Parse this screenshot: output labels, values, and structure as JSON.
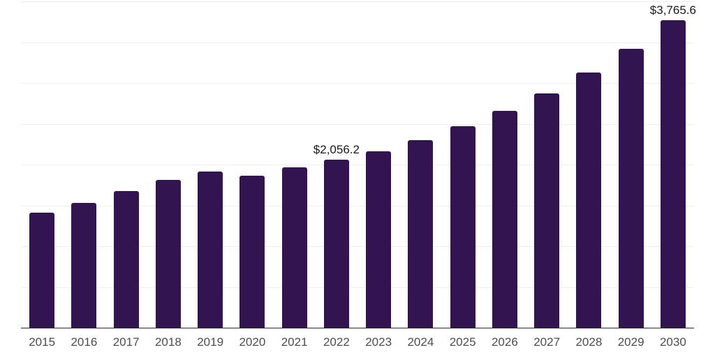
{
  "chart_data": {
    "type": "bar",
    "title": "",
    "xlabel": "",
    "ylabel": "",
    "categories": [
      "2015",
      "2016",
      "2017",
      "2018",
      "2019",
      "2020",
      "2021",
      "2022",
      "2023",
      "2024",
      "2025",
      "2026",
      "2027",
      "2028",
      "2029",
      "2030"
    ],
    "values": [
      1410,
      1533,
      1678,
      1809,
      1911,
      1863,
      1962,
      2056.2,
      2165,
      2298,
      2466,
      2654,
      2874,
      3130,
      3420,
      3765.6
    ],
    "data_labels": [
      {
        "category": "2022",
        "text": "$2,056.2"
      },
      {
        "category": "2030",
        "text": "$3,765.6"
      }
    ],
    "ylim": [
      0,
      4000
    ],
    "gridline_step": 500,
    "grid": "horizontal",
    "legend_position": "none",
    "colors": {
      "bar": "#321450",
      "gridline": "#f0f0f0",
      "axis_line": "#2b2b2b",
      "tick_label": "#4d4d4d",
      "data_label": "#1a1a1a",
      "background": "#ffffff"
    }
  }
}
